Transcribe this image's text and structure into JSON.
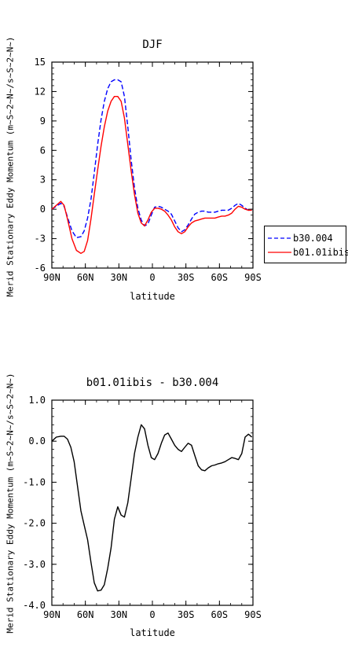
{
  "chart_data": [
    {
      "type": "line",
      "title": "DJF",
      "xlabel": "latitude",
      "ylabel": "Merid Stationary Eddy Momentum (m~S~2~N~/s~S~2~N~)",
      "x_ticks": [
        "90N",
        "60N",
        "30N",
        "0",
        "30S",
        "60S",
        "90S"
      ],
      "x_tick_values": [
        90,
        60,
        30,
        0,
        -30,
        -60,
        -90
      ],
      "xlim": [
        90,
        -90
      ],
      "ylim": [
        -6,
        15
      ],
      "y_ticks": [
        "-6",
        "-3",
        "0",
        "3",
        "6",
        "9",
        "12",
        "15"
      ],
      "y_tick_values": [
        -6,
        -3,
        0,
        3,
        6,
        9,
        12,
        15
      ],
      "legend_position": "right",
      "series": [
        {
          "name": "b30.004",
          "color": "#0000ff",
          "dash": "dashed",
          "x": [
            90,
            86,
            82,
            79,
            76,
            72,
            68,
            64,
            61,
            58,
            55,
            52,
            49,
            46,
            43,
            40,
            37,
            34,
            31,
            28,
            25,
            22,
            19,
            16,
            13,
            10,
            7,
            4,
            1,
            -2,
            -5,
            -8,
            -11,
            -14,
            -17,
            -20,
            -23,
            -26,
            -29,
            -32,
            -35,
            -38,
            -41,
            -44,
            -47,
            -50,
            -53,
            -56,
            -59,
            -62,
            -65,
            -68,
            -71,
            -74,
            -77,
            -80,
            -83,
            -86,
            -89
          ],
          "y": [
            0.0,
            0.3,
            0.6,
            0.3,
            -0.8,
            -2.2,
            -2.9,
            -2.8,
            -2.2,
            -0.9,
            1.0,
            3.7,
            6.6,
            9.1,
            11.0,
            12.3,
            13.0,
            13.2,
            13.2,
            13.0,
            11.5,
            8.4,
            5.0,
            2.2,
            0.1,
            -1.1,
            -1.7,
            -1.5,
            -0.6,
            0.2,
            0.3,
            0.2,
            0.0,
            -0.2,
            -0.5,
            -1.2,
            -1.9,
            -2.3,
            -2.1,
            -1.6,
            -1.0,
            -0.5,
            -0.3,
            -0.2,
            -0.2,
            -0.3,
            -0.3,
            -0.3,
            -0.2,
            -0.1,
            -0.1,
            -0.1,
            0.1,
            0.4,
            0.6,
            0.4,
            0.1,
            -0.1,
            -0.1
          ]
        },
        {
          "name": "b01.01ibis",
          "color": "#ff0000",
          "dash": "solid",
          "x": [
            90,
            86,
            82,
            79,
            76,
            72,
            68,
            64,
            61,
            58,
            55,
            52,
            49,
            46,
            43,
            40,
            37,
            34,
            31,
            28,
            25,
            22,
            19,
            16,
            13,
            10,
            7,
            4,
            1,
            -2,
            -5,
            -8,
            -11,
            -14,
            -17,
            -20,
            -23,
            -26,
            -29,
            -32,
            -35,
            -38,
            -41,
            -44,
            -47,
            -50,
            -53,
            -56,
            -59,
            -62,
            -65,
            -68,
            -71,
            -74,
            -77,
            -80,
            -83,
            -86,
            -89
          ],
          "y": [
            0.0,
            0.4,
            0.8,
            0.4,
            -1.0,
            -3.0,
            -4.2,
            -4.5,
            -4.3,
            -3.2,
            -1.0,
            1.5,
            4.0,
            6.4,
            8.4,
            10.0,
            11.0,
            11.5,
            11.5,
            11.0,
            9.3,
            6.6,
            3.9,
            1.5,
            -0.4,
            -1.4,
            -1.7,
            -1.1,
            -0.3,
            0.1,
            0.1,
            0.0,
            -0.2,
            -0.6,
            -1.1,
            -1.8,
            -2.3,
            -2.5,
            -2.3,
            -1.8,
            -1.4,
            -1.2,
            -1.1,
            -1.0,
            -0.9,
            -0.9,
            -0.9,
            -0.9,
            -0.8,
            -0.7,
            -0.7,
            -0.6,
            -0.4,
            0.0,
            0.3,
            0.2,
            0.0,
            -0.1,
            -0.1
          ]
        }
      ]
    },
    {
      "type": "line",
      "title": "b01.01ibis - b30.004",
      "xlabel": "latitude",
      "ylabel": "Merid Stationary Eddy Momentum (m~S~2~N~/s~S~2~N~)",
      "x_ticks": [
        "90N",
        "60N",
        "30N",
        "0",
        "30S",
        "60S",
        "90S"
      ],
      "x_tick_values": [
        90,
        60,
        30,
        0,
        -30,
        -60,
        -90
      ],
      "xlim": [
        90,
        -90
      ],
      "ylim": [
        -4,
        1
      ],
      "y_ticks": [
        "-4.0",
        "-3.0",
        "-2.0",
        "-1.0",
        "0.0",
        "1.0"
      ],
      "y_tick_values": [
        -4,
        -3,
        -2,
        -1,
        0,
        1
      ],
      "series": [
        {
          "color": "#000000",
          "dash": "solid",
          "x": [
            90,
            86,
            82,
            79,
            76,
            73,
            70,
            67,
            64,
            61,
            58,
            55,
            52,
            49,
            46,
            43,
            40,
            37,
            34,
            31,
            28,
            25,
            22,
            19,
            16,
            13,
            10,
            7,
            4,
            1,
            -2,
            -5,
            -8,
            -11,
            -14,
            -17,
            -20,
            -23,
            -26,
            -29,
            -32,
            -35,
            -38,
            -41,
            -44,
            -47,
            -50,
            -53,
            -56,
            -59,
            -62,
            -65,
            -68,
            -71,
            -74,
            -77,
            -80,
            -83,
            -86,
            -89
          ],
          "y": [
            0.0,
            0.1,
            0.12,
            0.12,
            0.05,
            -0.15,
            -0.5,
            -1.1,
            -1.7,
            -2.05,
            -2.4,
            -2.95,
            -3.45,
            -3.65,
            -3.63,
            -3.5,
            -3.1,
            -2.6,
            -1.9,
            -1.6,
            -1.8,
            -1.85,
            -1.5,
            -0.9,
            -0.3,
            0.1,
            0.4,
            0.3,
            -0.1,
            -0.4,
            -0.45,
            -0.3,
            -0.05,
            0.15,
            0.2,
            0.05,
            -0.1,
            -0.2,
            -0.25,
            -0.15,
            -0.05,
            -0.1,
            -0.35,
            -0.6,
            -0.7,
            -0.72,
            -0.65,
            -0.6,
            -0.58,
            -0.55,
            -0.53,
            -0.5,
            -0.45,
            -0.4,
            -0.42,
            -0.45,
            -0.3,
            0.1,
            0.17,
            0.1
          ]
        }
      ]
    }
  ]
}
